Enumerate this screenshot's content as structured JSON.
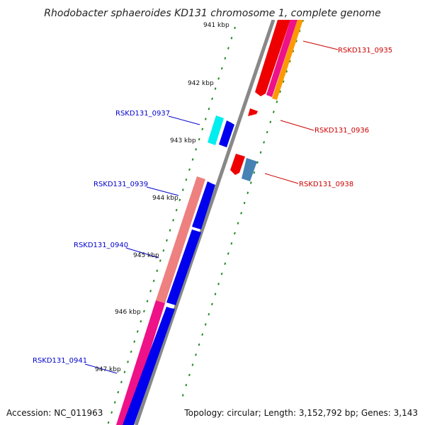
{
  "title": "Rhodobacter sphaeroides KD131 chromosome 1, complete genome",
  "accession": "Accession: NC_011963",
  "topology": "Topology: circular; Length: 3,152,792 bp; Genes: 3,143",
  "ticks": [
    "941 kbp",
    "942 kbp",
    "943 kbp",
    "944 kbp",
    "945 kbp",
    "946 kbp",
    "947 kbp"
  ],
  "genes_right": [
    "RSKD131_0935",
    "RSKD131_0936",
    "RSKD131_0938"
  ],
  "genes_left": [
    "RSKD131_0937",
    "RSKD131_0939",
    "RSKD131_0940",
    "RSKD131_0941"
  ],
  "colors": {
    "backbone": "#888888",
    "ticks": "#228B22",
    "label_forward": "#0000CC",
    "label_reverse": "#CC0000",
    "blue": "#0000EE",
    "red": "#EE0000",
    "pink": "#EE1188",
    "salmon": "#EE8080",
    "cyan": "#00EEEE",
    "steel": "#4682B4",
    "orange": "#FF9900"
  }
}
